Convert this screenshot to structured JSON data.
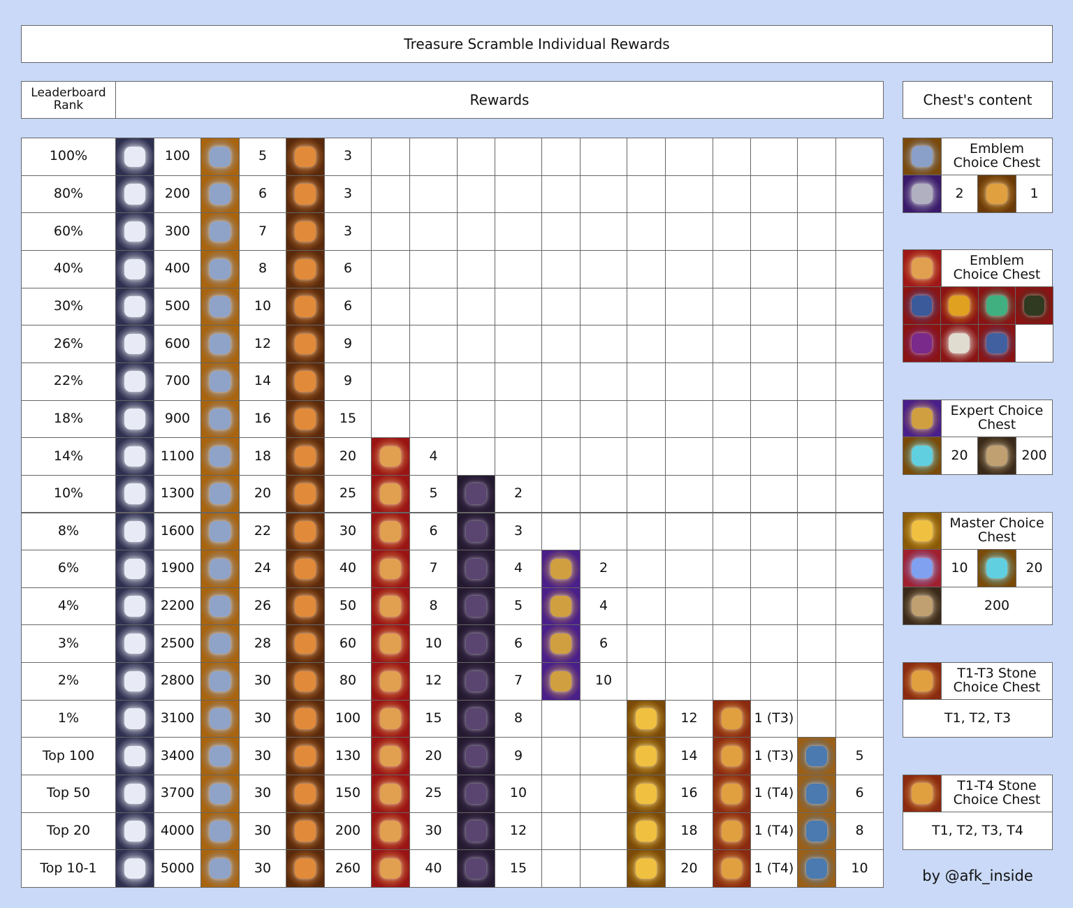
{
  "title": "Treasure Scramble Individual Rewards",
  "table": {
    "header": {
      "rank": "Leaderboard Rank",
      "rewards": "Rewards"
    },
    "rows": [
      {
        "rank": "100%",
        "values": [
          100,
          5,
          3,
          null,
          null,
          null,
          null,
          null,
          null
        ]
      },
      {
        "rank": "80%",
        "values": [
          200,
          6,
          3,
          null,
          null,
          null,
          null,
          null,
          null
        ]
      },
      {
        "rank": "60%",
        "values": [
          300,
          7,
          3,
          null,
          null,
          null,
          null,
          null,
          null
        ]
      },
      {
        "rank": "40%",
        "values": [
          400,
          8,
          6,
          null,
          null,
          null,
          null,
          null,
          null
        ]
      },
      {
        "rank": "30%",
        "values": [
          500,
          10,
          6,
          null,
          null,
          null,
          null,
          null,
          null
        ]
      },
      {
        "rank": "26%",
        "values": [
          600,
          12,
          9,
          null,
          null,
          null,
          null,
          null,
          null
        ]
      },
      {
        "rank": "22%",
        "values": [
          700,
          14,
          9,
          null,
          null,
          null,
          null,
          null,
          null
        ]
      },
      {
        "rank": "18%",
        "values": [
          900,
          16,
          15,
          null,
          null,
          null,
          null,
          null,
          null
        ]
      },
      {
        "rank": "14%",
        "values": [
          1100,
          18,
          20,
          4,
          null,
          null,
          null,
          null,
          null
        ]
      },
      {
        "rank": "10%",
        "values": [
          1300,
          20,
          25,
          5,
          2,
          null,
          null,
          null,
          null
        ]
      },
      {
        "rank": "8%",
        "values": [
          1600,
          22,
          30,
          6,
          3,
          null,
          null,
          null,
          null
        ]
      },
      {
        "rank": "6%",
        "values": [
          1900,
          24,
          40,
          7,
          4,
          2,
          null,
          null,
          null
        ]
      },
      {
        "rank": "4%",
        "values": [
          2200,
          26,
          50,
          8,
          5,
          4,
          null,
          null,
          null
        ]
      },
      {
        "rank": "3%",
        "values": [
          2500,
          28,
          60,
          10,
          6,
          6,
          null,
          null,
          null
        ]
      },
      {
        "rank": "2%",
        "values": [
          2800,
          30,
          80,
          12,
          7,
          10,
          null,
          null,
          null
        ]
      },
      {
        "rank": "1%",
        "values": [
          3100,
          30,
          100,
          15,
          8,
          null,
          12,
          "1 (T3)",
          null
        ]
      },
      {
        "rank": "Top 100",
        "values": [
          3400,
          30,
          130,
          20,
          9,
          null,
          14,
          "1 (T3)",
          5
        ]
      },
      {
        "rank": "Top 50",
        "values": [
          3700,
          30,
          150,
          25,
          10,
          null,
          16,
          "1 (T4)",
          6
        ]
      },
      {
        "rank": "Top 20",
        "values": [
          4000,
          30,
          200,
          30,
          12,
          null,
          18,
          "1 (T4)",
          8
        ]
      },
      {
        "rank": "Top 10-1",
        "values": [
          5000,
          30,
          260,
          40,
          15,
          null,
          20,
          "1 (T4)",
          10
        ]
      }
    ]
  },
  "chests": {
    "header": "Chest's content",
    "items": [
      {
        "name": "Emblem Choice Chest",
        "amounts": [
          2,
          1
        ]
      },
      {
        "name": "Emblem Choice Chest"
      },
      {
        "name": "Expert Choice Chest",
        "amounts": [
          20,
          200
        ]
      },
      {
        "name": "Master Choice Chest",
        "amounts": [
          10,
          20,
          200
        ]
      },
      {
        "name": "T1-T3 Stone Choice Chest",
        "tiers": "T1, T2, T3"
      },
      {
        "name": "T1-T4 Stone Choice Chest",
        "tiers": "T1, T2, T3, T4"
      }
    ]
  },
  "credit": "by @afk_inside"
}
